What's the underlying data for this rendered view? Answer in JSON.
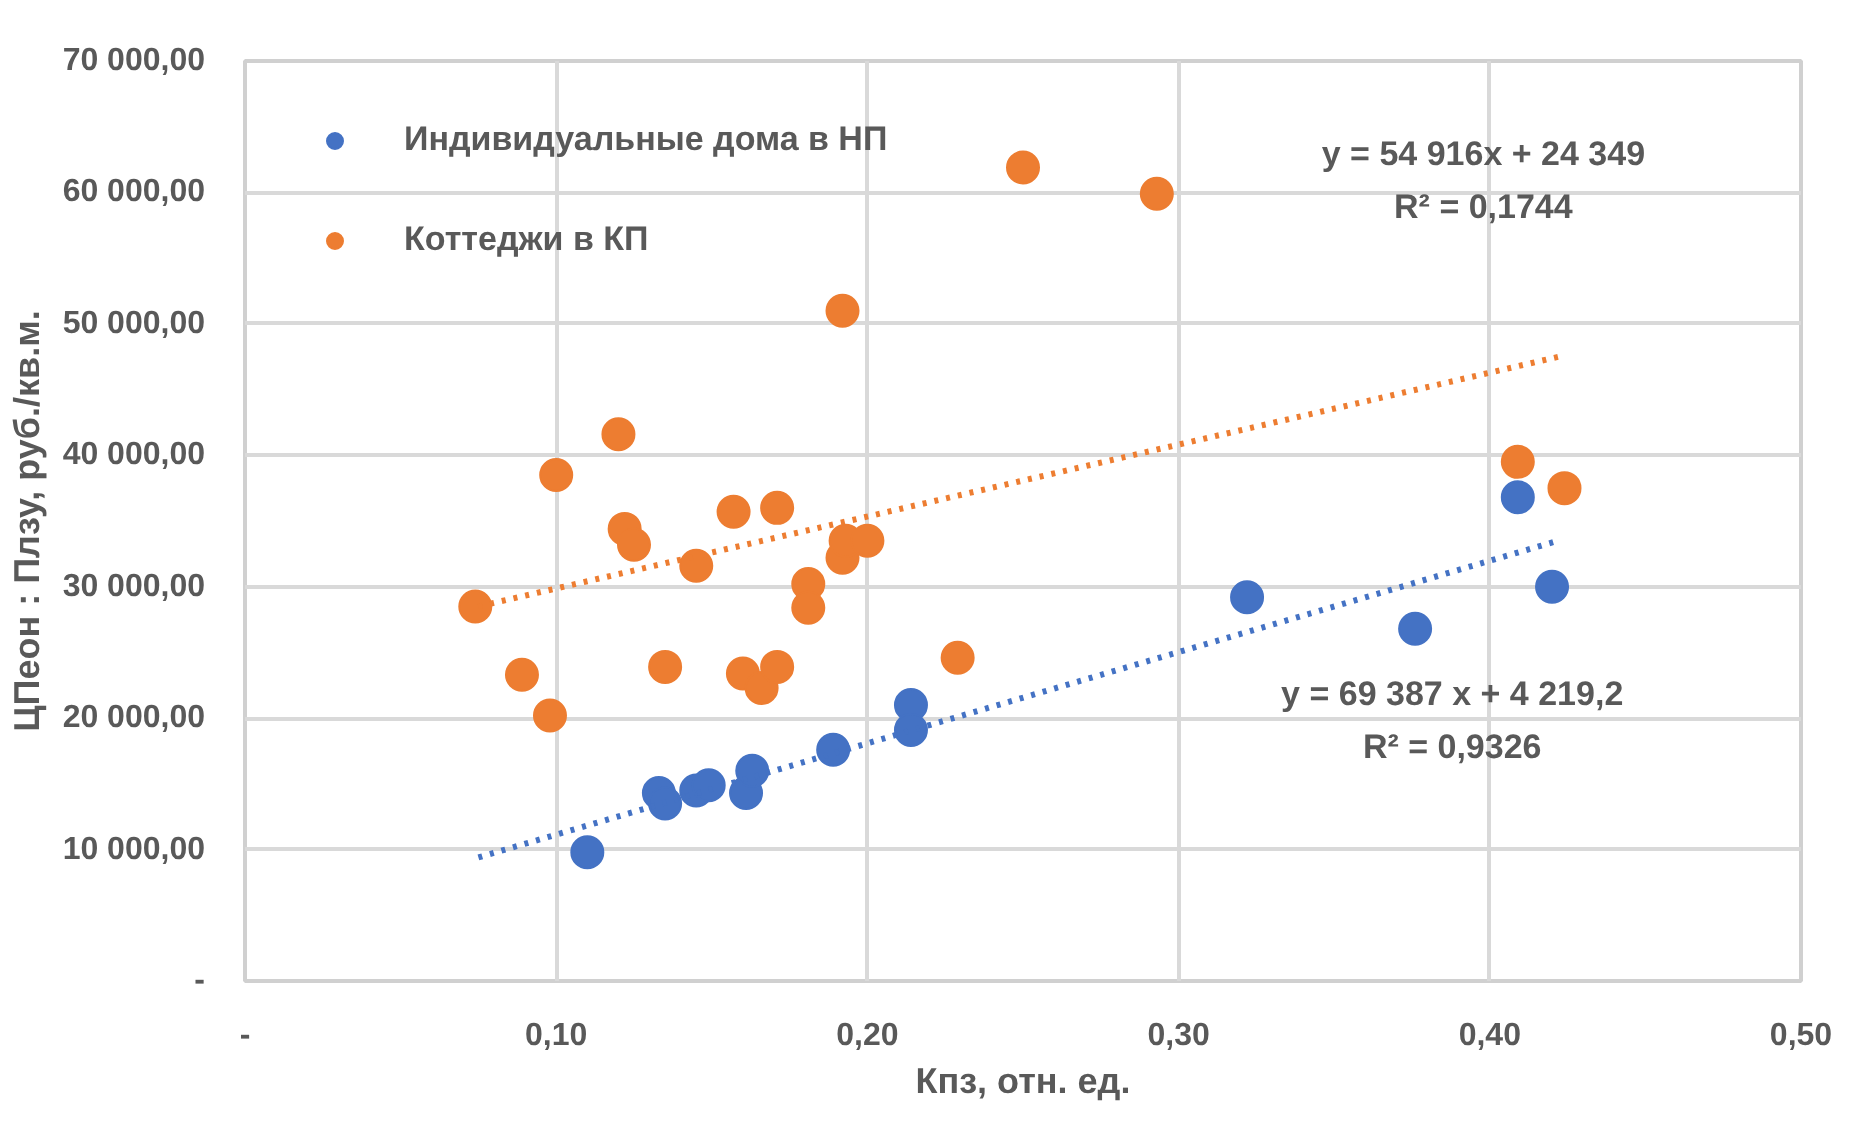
{
  "chart_data": {
    "type": "scatter",
    "xlabel": "Кпз, отн. ед.",
    "ylabel": "ЦПеон : Плзу, руб./кв.м.",
    "xlim": [
      0,
      0.5
    ],
    "xticks": [
      {
        "value": 0,
        "label": "-"
      },
      {
        "value": 0.1,
        "label": "0,10"
      },
      {
        "value": 0.2,
        "label": "0,20"
      },
      {
        "value": 0.3,
        "label": "0,30"
      },
      {
        "value": 0.4,
        "label": "0,40"
      },
      {
        "value": 0.5,
        "label": "0,50"
      }
    ],
    "ylim": [
      0,
      70000
    ],
    "yticks": [
      {
        "value": 0,
        "label": "-"
      },
      {
        "value": 10000,
        "label": "10 000,00"
      },
      {
        "value": 20000,
        "label": "20 000,00"
      },
      {
        "value": 30000,
        "label": "30 000,00"
      },
      {
        "value": 40000,
        "label": "40 000,00"
      },
      {
        "value": 50000,
        "label": "50 000,00"
      },
      {
        "value": 60000,
        "label": "60 000,00"
      },
      {
        "value": 70000,
        "label": "70 000,00"
      }
    ],
    "grid": true,
    "legend": "top left",
    "marker": "circle",
    "series": [
      {
        "name": "Индивидуальные дома в НП",
        "color": "#4472c4",
        "x": [
          0.11,
          0.133,
          0.135,
          0.145,
          0.149,
          0.161,
          0.163,
          0.189,
          0.214,
          0.214,
          0.322,
          0.376,
          0.409,
          0.42
        ],
        "values": [
          9800,
          14300,
          13500,
          14500,
          14900,
          14300,
          16000,
          17600,
          21000,
          19100,
          29200,
          26800,
          36800,
          30000
        ]
      },
      {
        "name": "Коттеджи в КП",
        "color": "#ed7d31",
        "x": [
          0.074,
          0.089,
          0.098,
          0.1,
          0.12,
          0.122,
          0.125,
          0.135,
          0.145,
          0.157,
          0.16,
          0.166,
          0.171,
          0.171,
          0.181,
          0.181,
          0.192,
          0.192,
          0.193,
          0.2,
          0.229,
          0.25,
          0.293,
          0.409,
          0.424
        ],
        "values": [
          28500,
          23300,
          20200,
          38500,
          41600,
          34400,
          33200,
          23900,
          31600,
          35700,
          23400,
          22300,
          23900,
          36000,
          30200,
          28400,
          51000,
          32200,
          33500,
          33500,
          24600,
          61900,
          59900,
          39500,
          37500
        ]
      },
      {
        "type": "line",
        "line_style": "dotted",
        "marker": "none",
        "color": "#4472c4",
        "x": [
          0.075,
          0.422
        ],
        "values": [
          9400,
          33500
        ]
      },
      {
        "type": "line",
        "line_style": "dotted",
        "marker": "none",
        "color": "#ed7d31",
        "x": [
          0.075,
          0.424
        ],
        "values": [
          28500,
          47600
        ]
      }
    ],
    "annotations": [
      "y = 54 916x + 24 349\nR² = 0,1744",
      "y = 69 387 x + 4 219,2\nR² = 0,9326"
    ]
  }
}
